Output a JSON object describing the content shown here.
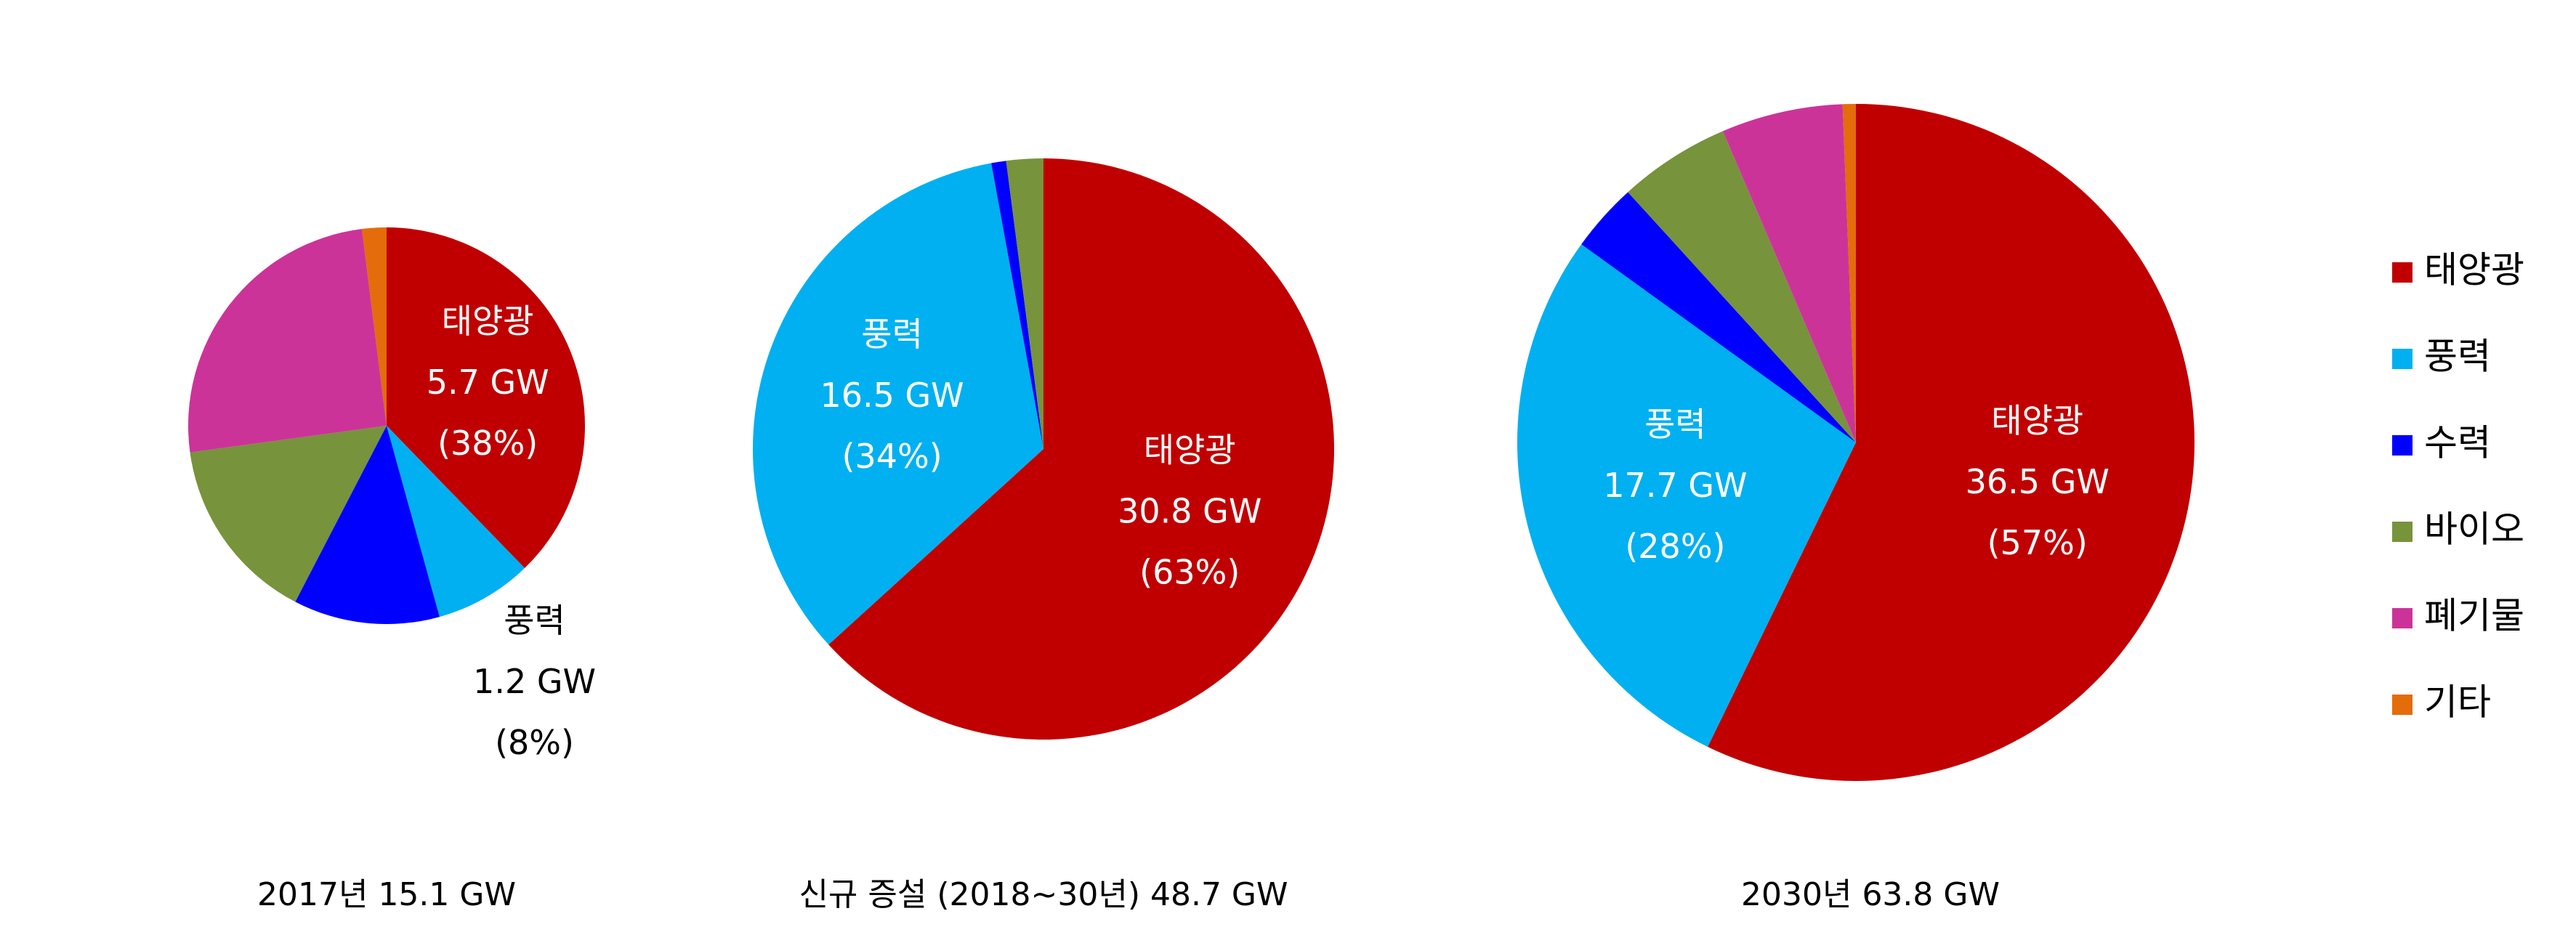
{
  "chart_data": [
    {
      "type": "pie",
      "title": "2017년 15.1 GW",
      "categories": [
        "태양광",
        "풍력",
        "수력",
        "바이오",
        "폐기물",
        "기타"
      ],
      "values": [
        5.7,
        1.2,
        1.8,
        2.3,
        3.8,
        0.3
      ],
      "value_labels": [
        "5.7 GW",
        "1.2 GW",
        null,
        null,
        null,
        null
      ],
      "percent_labels": [
        "(38%)",
        "(8%)",
        null,
        null,
        null,
        null
      ],
      "colors": [
        "#C00000",
        "#00B0F0",
        "#0000FF",
        "#77933C",
        "#CC3399",
        "#E46C0A"
      ]
    },
    {
      "type": "pie",
      "title": "신규 증설 (2018~30년) 48.7 GW",
      "categories": [
        "태양광",
        "풍력",
        "수력",
        "바이오"
      ],
      "values": [
        30.8,
        16.5,
        0.4,
        1.0
      ],
      "value_labels": [
        "30.8 GW",
        "16.5 GW",
        null,
        null
      ],
      "percent_labels": [
        "(63%)",
        "(34%)",
        null,
        null
      ],
      "colors": [
        "#C00000",
        "#00B0F0",
        "#0000FF",
        "#77933C"
      ]
    },
    {
      "type": "pie",
      "title": "2030년 63.8 GW",
      "categories": [
        "태양광",
        "풍력",
        "수력",
        "바이오",
        "폐기물",
        "기타"
      ],
      "values": [
        36.5,
        17.7,
        2.1,
        3.4,
        3.7,
        0.4
      ],
      "value_labels": [
        "36.5 GW",
        "17.7 GW",
        null,
        null,
        null,
        null
      ],
      "percent_labels": [
        "(57%)",
        "(28%)",
        null,
        null,
        null,
        null
      ],
      "colors": [
        "#C00000",
        "#00B0F0",
        "#0000FF",
        "#77933C",
        "#CC3399",
        "#E46C0A"
      ],
      "legend": "right"
    }
  ]
}
